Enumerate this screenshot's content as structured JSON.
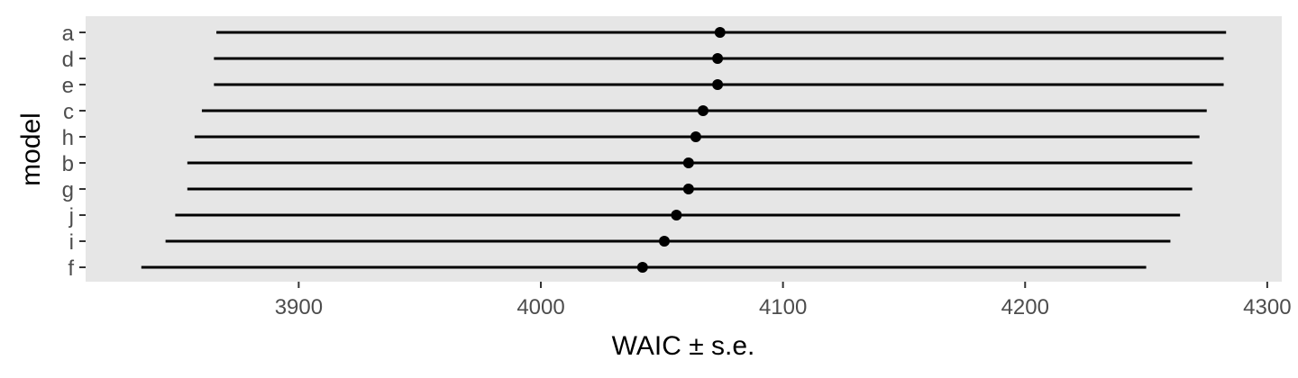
{
  "chart_data": {
    "type": "interval",
    "xlabel": "WAIC ± s.e.",
    "ylabel": "model",
    "xlim": [
      3812,
      4306
    ],
    "x_ticks": [
      3900,
      4000,
      4100,
      4200,
      4300
    ],
    "x_tick_labels": [
      "3900",
      "4000",
      "4100",
      "4200",
      "4300"
    ],
    "grid": false,
    "colors": {
      "panel": "#e6e6e6",
      "marks": "#000000",
      "tick_text": "#4d4d4d"
    },
    "points": [
      {
        "model": "a",
        "waic": 4074,
        "lower": 3866,
        "upper": 4283
      },
      {
        "model": "d",
        "waic": 4073,
        "lower": 3865,
        "upper": 4282
      },
      {
        "model": "e",
        "waic": 4073,
        "lower": 3865,
        "upper": 4282
      },
      {
        "model": "c",
        "waic": 4067,
        "lower": 3860,
        "upper": 4275
      },
      {
        "model": "h",
        "waic": 4064,
        "lower": 3857,
        "upper": 4272
      },
      {
        "model": "b",
        "waic": 4061,
        "lower": 3854,
        "upper": 4269
      },
      {
        "model": "g",
        "waic": 4061,
        "lower": 3854,
        "upper": 4269
      },
      {
        "model": "j",
        "waic": 4056,
        "lower": 3849,
        "upper": 4264
      },
      {
        "model": "i",
        "waic": 4051,
        "lower": 3845,
        "upper": 4260
      },
      {
        "model": "f",
        "waic": 4042,
        "lower": 3835,
        "upper": 4250
      }
    ]
  }
}
